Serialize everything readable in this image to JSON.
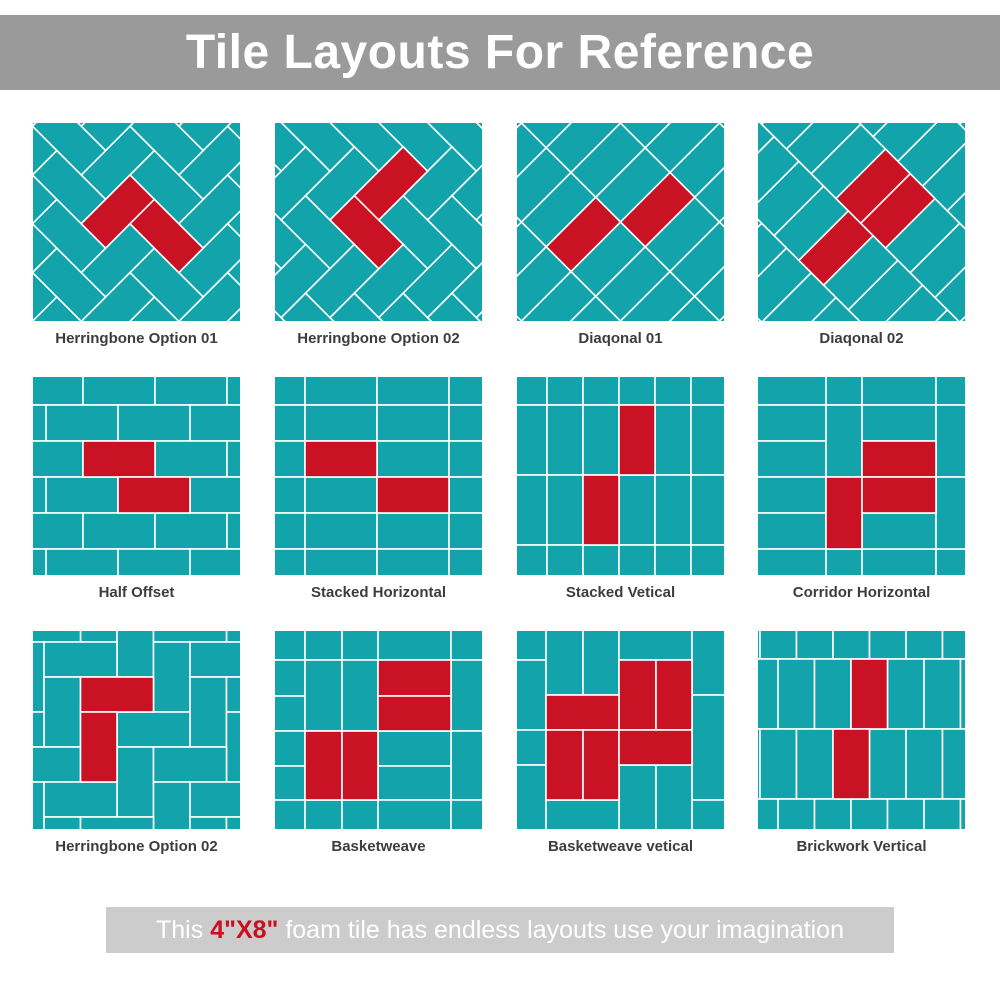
{
  "title": "Tile Layouts For Reference",
  "colors": {
    "tile": "#12a4aa",
    "highlight": "#c91325",
    "grout": "#ffffff",
    "title_bar": "#9a9a9a",
    "footer_bar": "#cccccc",
    "footer_accent": "#c8101f"
  },
  "panels": [
    {
      "label": "Herringbone Option 01",
      "layout": "herringbone-45-a"
    },
    {
      "label": "Herringbone Option 02",
      "layout": "herringbone-45-b"
    },
    {
      "label": "Diaqonal 01",
      "layout": "diagonal-stacked"
    },
    {
      "label": "Diaqonal 02",
      "layout": "diagonal-offset"
    },
    {
      "label": "Half Offset",
      "layout": "half-offset"
    },
    {
      "label": "Stacked Horizontal",
      "layout": "stacked-horizontal"
    },
    {
      "label": "Stacked Vetical",
      "layout": "stacked-vertical"
    },
    {
      "label": "Corridor Horizontal",
      "layout": "corridor-horizontal"
    },
    {
      "label": "Herringbone Option 02",
      "layout": "herringbone-90"
    },
    {
      "label": "Basketweave",
      "layout": "basketweave"
    },
    {
      "label": "Basketweave vetical",
      "layout": "basketweave-vertical"
    },
    {
      "label": "Brickwork Vertical",
      "layout": "brickwork-vertical"
    }
  ],
  "footer": {
    "prefix": "This ",
    "size": "4\"X8\"",
    "suffix": " foam tile has endless layouts use your imagination"
  }
}
